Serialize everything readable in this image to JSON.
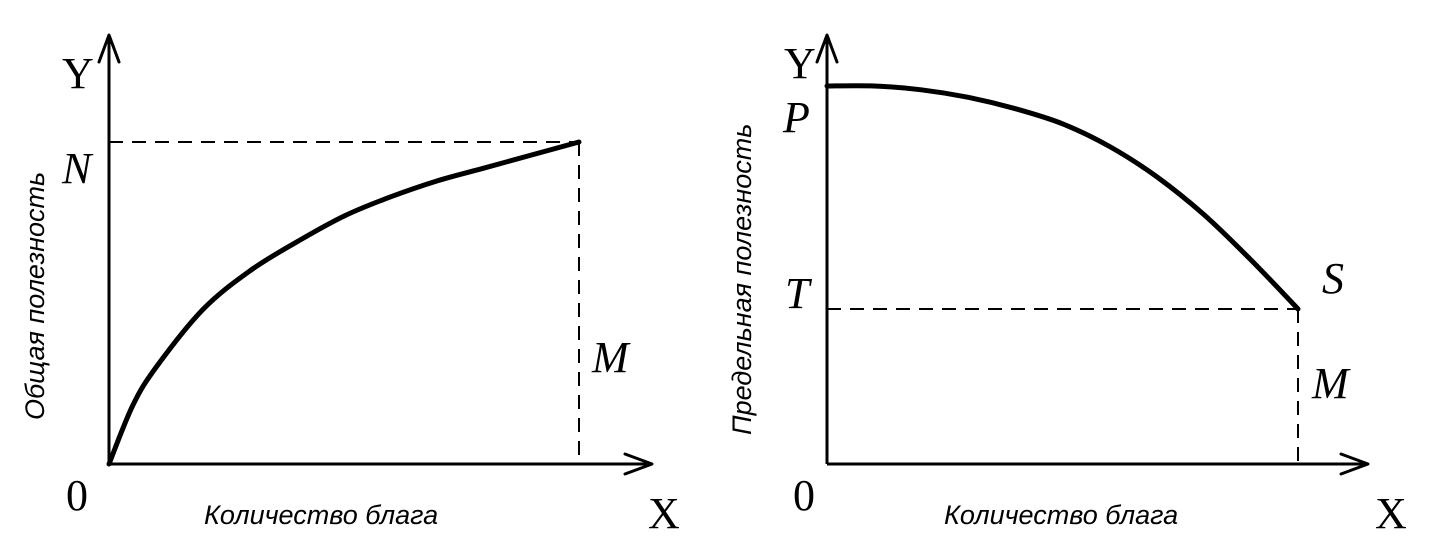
{
  "chart_data": [
    {
      "type": "line",
      "title": "",
      "xlabel": "Количество блага",
      "ylabel": "Общая полезность",
      "axis_letters": {
        "x": "X",
        "y": "Y",
        "origin": "0"
      },
      "point_labels": {
        "y_level": "N",
        "x_level": "M"
      },
      "xlim": [
        0,
        1
      ],
      "ylim": [
        0,
        1.1
      ],
      "grid": false,
      "series": [
        {
          "x": [
            0,
            0.05,
            0.1,
            0.2,
            0.3,
            0.4,
            0.5,
            0.6,
            0.7,
            0.8,
            0.9,
            1.0
          ],
          "y": [
            0,
            0.18,
            0.3,
            0.48,
            0.6,
            0.69,
            0.77,
            0.83,
            0.88,
            0.92,
            0.96,
            1.0
          ]
        }
      ],
      "reference_lines": {
        "x": 1.0,
        "y": 1.0
      }
    },
    {
      "type": "line",
      "title": "",
      "xlabel": "Количество блага",
      "ylabel": "Предельная полезность",
      "axis_letters": {
        "x": "X",
        "y": "Y",
        "origin": "0"
      },
      "point_labels": {
        "y_start": "P",
        "y_level": "T",
        "end_point": "S",
        "x_level": "M"
      },
      "xlim": [
        0,
        1
      ],
      "ylim": [
        0,
        1.1
      ],
      "grid": false,
      "series": [
        {
          "x": [
            0,
            0.1,
            0.2,
            0.3,
            0.4,
            0.5,
            0.6,
            0.7,
            0.8,
            0.9,
            1.0
          ],
          "y": [
            1.0,
            1.0,
            0.99,
            0.97,
            0.94,
            0.9,
            0.84,
            0.76,
            0.66,
            0.54,
            0.41
          ]
        }
      ],
      "reference_lines": {
        "x": 1.0,
        "y": 0.41
      }
    }
  ]
}
